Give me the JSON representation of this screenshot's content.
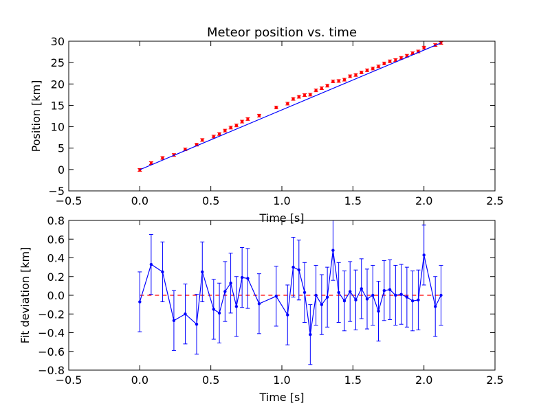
{
  "chart_data": [
    {
      "type": "scatter",
      "title": "Meteor position vs. time",
      "xlabel": "Time [s]",
      "ylabel": "Position [km]",
      "xlim": [
        -0.5,
        2.5
      ],
      "ylim": [
        -5,
        30
      ],
      "xticks": [
        -0.5,
        0.0,
        0.5,
        1.0,
        1.5,
        2.0,
        2.5
      ],
      "xtick_labels": [
        "−0.5",
        "0.0",
        "0.5",
        "1.0",
        "1.5",
        "2.0",
        "2.5"
      ],
      "yticks": [
        -5,
        0,
        5,
        10,
        15,
        20,
        25,
        30
      ],
      "ytick_labels": [
        "−5",
        "0",
        "5",
        "10",
        "15",
        "20",
        "25",
        "30"
      ],
      "grid": false,
      "series": [
        {
          "kind": "points-with-errorbars",
          "color": "#ff0000",
          "x": [
            0.0,
            0.08,
            0.16,
            0.24,
            0.32,
            0.4,
            0.44,
            0.52,
            0.56,
            0.6,
            0.64,
            0.68,
            0.72,
            0.76,
            0.84,
            0.96,
            1.04,
            1.08,
            1.12,
            1.16,
            1.2,
            1.24,
            1.28,
            1.32,
            1.36,
            1.4,
            1.44,
            1.48,
            1.52,
            1.56,
            1.6,
            1.64,
            1.68,
            1.72,
            1.76,
            1.8,
            1.84,
            1.88,
            1.92,
            1.96,
            2.0,
            2.08,
            2.12
          ],
          "y": [
            -0.1,
            1.5,
            2.7,
            3.4,
            4.7,
            5.8,
            6.9,
            7.7,
            8.3,
            9.1,
            9.8,
            10.3,
            11.2,
            11.8,
            12.6,
            14.5,
            15.4,
            16.5,
            17.0,
            17.4,
            17.5,
            18.5,
            19.0,
            19.6,
            20.6,
            20.7,
            21.0,
            21.8,
            22.1,
            22.7,
            23.2,
            23.6,
            24.1,
            24.8,
            25.3,
            25.6,
            26.1,
            26.6,
            27.2,
            27.6,
            28.5,
            29.1,
            29.6
          ],
          "yerr": 0.32
        },
        {
          "kind": "fit-line",
          "color": "#0000ff",
          "x": [
            0.0,
            2.12
          ],
          "y": [
            -0.05,
            29.6
          ]
        }
      ]
    },
    {
      "type": "line",
      "title": "",
      "xlabel": "Time [s]",
      "ylabel": "Fit deviation [km]",
      "xlim": [
        -0.5,
        2.5
      ],
      "ylim": [
        -0.8,
        0.8
      ],
      "xticks": [
        -0.5,
        0.0,
        0.5,
        1.0,
        1.5,
        2.0,
        2.5
      ],
      "xtick_labels": [
        "−0.5",
        "0.0",
        "0.5",
        "1.0",
        "1.5",
        "2.0",
        "2.5"
      ],
      "yticks": [
        -0.8,
        -0.6,
        -0.4,
        -0.2,
        0.0,
        0.2,
        0.4,
        0.6,
        0.8
      ],
      "ytick_labels": [
        "−0.8",
        "−0.6",
        "−0.4",
        "−0.2",
        "0.0",
        "0.2",
        "0.4",
        "0.6",
        "0.8"
      ],
      "grid": false,
      "reference_line": {
        "y": 0.0,
        "color": "#ff0000",
        "style": "dashed"
      },
      "series": [
        {
          "kind": "line-with-errorbars",
          "color": "#0000ff",
          "x": [
            0.0,
            0.08,
            0.16,
            0.24,
            0.32,
            0.4,
            0.44,
            0.52,
            0.56,
            0.6,
            0.64,
            0.68,
            0.72,
            0.76,
            0.84,
            0.96,
            1.04,
            1.08,
            1.12,
            1.16,
            1.2,
            1.24,
            1.28,
            1.32,
            1.36,
            1.4,
            1.44,
            1.48,
            1.52,
            1.56,
            1.6,
            1.64,
            1.68,
            1.72,
            1.76,
            1.8,
            1.84,
            1.88,
            1.92,
            1.96,
            2.0,
            2.08,
            2.12
          ],
          "y": [
            -0.07,
            0.33,
            0.25,
            -0.27,
            -0.2,
            -0.31,
            0.25,
            -0.15,
            -0.19,
            0.04,
            0.13,
            -0.12,
            0.19,
            0.18,
            -0.09,
            -0.01,
            -0.21,
            0.3,
            0.27,
            0.03,
            -0.42,
            0.0,
            -0.1,
            -0.02,
            0.48,
            0.03,
            -0.06,
            0.04,
            -0.05,
            0.07,
            -0.04,
            0.0,
            -0.17,
            0.05,
            0.06,
            0.0,
            0.01,
            -0.02,
            -0.06,
            -0.05,
            0.43,
            -0.12,
            0.0
          ],
          "yerr": 0.32
        }
      ]
    }
  ]
}
